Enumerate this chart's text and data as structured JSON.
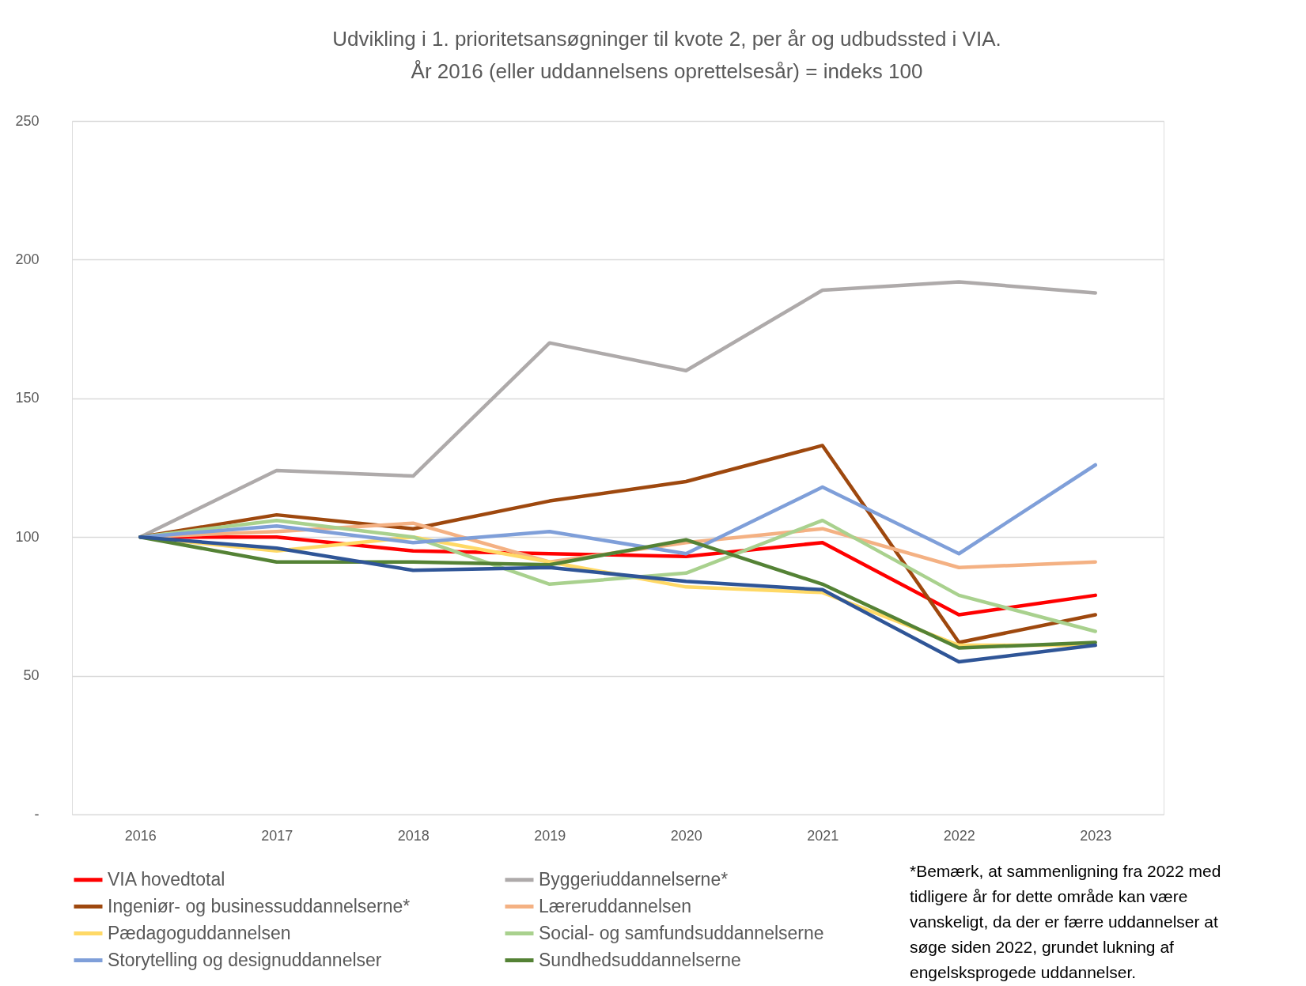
{
  "chart_data": {
    "type": "line",
    "title": "Udvikling i 1. prioritetsansøgninger til kvote 2, per år og udbudssted i VIA.",
    "subtitle": "År 2016 (eller uddannelsens oprettelsesår) = indeks 100",
    "categories": [
      "2016",
      "2017",
      "2018",
      "2019",
      "2020",
      "2021",
      "2022",
      "2023"
    ],
    "ylim": [
      0,
      250
    ],
    "yticks": [
      {
        "value": 0,
        "label": "-"
      },
      50,
      100,
      150,
      200,
      250
    ],
    "grid": "y",
    "legend": "bottom",
    "line_style": "solid",
    "series": [
      {
        "name": "VIA hovedtotal",
        "color": "#ff0000",
        "values": [
          100,
          100,
          95,
          94,
          93,
          98,
          72,
          79
        ]
      },
      {
        "name": "Byggeriuddannelserne*",
        "color": "#aeaaaa",
        "values": [
          100,
          124,
          122,
          170,
          160,
          189,
          192,
          188
        ]
      },
      {
        "name": "Ingeniør- og businessuddannelserne*",
        "color": "#9e480e",
        "values": [
          100,
          108,
          103,
          113,
          120,
          133,
          62,
          72
        ]
      },
      {
        "name": "Læreruddannelsen",
        "color": "#f4b183",
        "values": [
          100,
          102,
          105,
          91,
          98,
          103,
          89,
          91
        ]
      },
      {
        "name": "Pædagoguddannelsen",
        "color": "#ffd966",
        "values": [
          100,
          95,
          100,
          91,
          82,
          80,
          61,
          61
        ]
      },
      {
        "name": "Social- og samfundsuddannelserne",
        "color": "#a9d18e",
        "values": [
          100,
          106,
          100,
          83,
          87,
          106,
          79,
          66
        ]
      },
      {
        "name": "Storytelling og designuddannelser",
        "color": "#7f9fd9",
        "values": [
          100,
          104,
          98,
          102,
          94,
          118,
          94,
          126
        ]
      },
      {
        "name": "Sundhedsuddannelserne",
        "color": "#548235",
        "values": [
          100,
          91,
          91,
          90,
          99,
          83,
          60,
          62
        ]
      },
      {
        "color": "#2f5597",
        "values": [
          100,
          96,
          88,
          89,
          84,
          81,
          55,
          61
        ]
      }
    ],
    "annotations": [
      "*Bemærk, at sammenligning fra 2022 med tidligere år for dette område kan være vanskeligt, da der er færre uddannelser at søge siden 2022, grundet lukning af engelsksprogede uddannelser."
    ]
  }
}
